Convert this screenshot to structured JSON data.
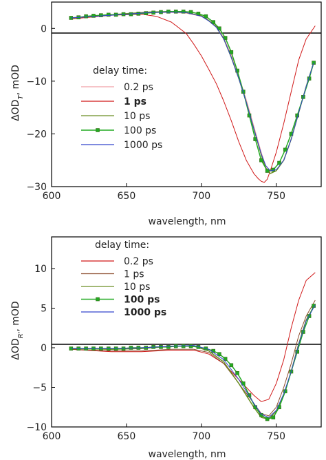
{
  "chart_data": [
    {
      "type": "line",
      "panel": "top",
      "ylabel_parts": {
        "prefix": "ΔOD",
        "sub": "T",
        "suffix": ", mOD"
      },
      "xlabel": "wavelength, nm",
      "xlim": [
        600,
        780
      ],
      "ylim": [
        -30,
        5
      ],
      "xticks": [
        600,
        650,
        700,
        750
      ],
      "yticks": [
        0,
        -10,
        -20,
        -30
      ],
      "zero_line": true,
      "legend": {
        "title": "delay time:",
        "placement": "left-center",
        "entries": [
          {
            "label": "0.2 ps",
            "color": "#f0a0a8",
            "bold": false
          },
          {
            "label": "1 ps",
            "color": "#d01818",
            "bold": true
          },
          {
            "label": "10 ps",
            "color": "#6b8e23",
            "bold": false
          },
          {
            "label": "100 ps",
            "color": "#22aa22",
            "bold": false,
            "marker": true
          },
          {
            "label": "1000 ps",
            "color": "#3344cc",
            "bold": false
          }
        ]
      },
      "series": [
        {
          "name": "0.2 ps",
          "color": "#f0a0a8",
          "width": 1,
          "x": [
            613,
            640,
            665,
            680,
            690,
            700,
            705,
            710,
            715,
            720,
            725,
            730,
            735,
            740,
            743,
            746,
            750,
            755,
            760,
            765,
            770,
            775
          ],
          "y": [
            2.0,
            2.6,
            3.0,
            3.0,
            2.9,
            2.3,
            1.5,
            0.4,
            -1.8,
            -5.0,
            -9.0,
            -13.5,
            -18.5,
            -23.5,
            -26.2,
            -27.5,
            -27.0,
            -25.0,
            -21.0,
            -16.0,
            -11.0,
            -6.5
          ]
        },
        {
          "name": "1 ps",
          "color": "#d01818",
          "width": 1,
          "x": [
            613,
            640,
            660,
            670,
            680,
            690,
            695,
            700,
            705,
            710,
            715,
            720,
            725,
            730,
            735,
            738,
            740,
            742,
            744,
            746,
            750,
            755,
            760,
            765,
            770,
            776
          ],
          "y": [
            1.8,
            2.5,
            2.7,
            2.3,
            1.2,
            -1.0,
            -3.0,
            -5.2,
            -7.8,
            -10.5,
            -13.8,
            -17.5,
            -21.5,
            -25.0,
            -27.5,
            -28.5,
            -29.0,
            -29.2,
            -28.6,
            -27.0,
            -23.5,
            -18.0,
            -12.0,
            -6.0,
            -2.0,
            0.5
          ]
        },
        {
          "name": "10 ps",
          "color": "#6b8e23",
          "width": 1.5,
          "x": [
            613,
            640,
            665,
            680,
            690,
            700,
            705,
            710,
            715,
            720,
            725,
            730,
            735,
            740,
            743,
            746,
            750,
            755,
            760,
            765,
            770,
            775
          ],
          "y": [
            2.0,
            2.6,
            3.1,
            3.2,
            3.0,
            2.4,
            1.5,
            0.3,
            -2.0,
            -5.5,
            -9.5,
            -14.0,
            -19.0,
            -24.0,
            -26.5,
            -27.5,
            -27.0,
            -25.0,
            -21.0,
            -16.0,
            -11.0,
            -6.5
          ]
        },
        {
          "name": "100 ps",
          "color": "#22aa22",
          "width": 1.5,
          "marker": true,
          "x": [
            613,
            618,
            623,
            628,
            633,
            638,
            643,
            648,
            653,
            658,
            663,
            668,
            673,
            678,
            683,
            688,
            693,
            698,
            703,
            708,
            712,
            716,
            720,
            724,
            728,
            732,
            736,
            740,
            744,
            748,
            752,
            756,
            760,
            764,
            768,
            772,
            775
          ],
          "y": [
            2.0,
            2.1,
            2.3,
            2.4,
            2.5,
            2.6,
            2.6,
            2.7,
            2.7,
            2.8,
            2.9,
            3.0,
            3.1,
            3.2,
            3.2,
            3.2,
            3.1,
            2.8,
            2.3,
            1.2,
            0.0,
            -1.8,
            -4.5,
            -8.0,
            -12.0,
            -16.5,
            -21.0,
            -25.0,
            -27.0,
            -26.8,
            -25.5,
            -23.0,
            -20.0,
            -16.5,
            -13.0,
            -9.5,
            -6.5
          ]
        },
        {
          "name": "1000 ps",
          "color": "#3344cc",
          "width": 1,
          "x": [
            613,
            640,
            665,
            680,
            690,
            700,
            705,
            710,
            715,
            720,
            725,
            730,
            735,
            740,
            743,
            746,
            750,
            755,
            760,
            765,
            770,
            775
          ],
          "y": [
            2.0,
            2.5,
            3.0,
            3.1,
            3.0,
            2.3,
            1.4,
            0.2,
            -2.0,
            -5.5,
            -9.5,
            -14.0,
            -19.0,
            -23.8,
            -26.0,
            -27.0,
            -26.8,
            -25.0,
            -21.0,
            -16.0,
            -11.0,
            -6.5
          ]
        }
      ]
    },
    {
      "type": "line",
      "panel": "bottom",
      "ylabel_parts": {
        "prefix": "ΔOD",
        "sub": "R'",
        "suffix": ", mOD"
      },
      "xlabel": "wavelength, nm",
      "xlim": [
        600,
        780
      ],
      "ylim": [
        -10,
        14
      ],
      "xticks": [
        600,
        650,
        700,
        750
      ],
      "yticks": [
        10,
        5,
        0,
        -5,
        -10
      ],
      "zero_line": true,
      "legend": {
        "title": "delay time:",
        "placement": "top-left",
        "entries": [
          {
            "label": "0.2 ps",
            "color": "#d01818",
            "bold": false
          },
          {
            "label": "1 ps",
            "color": "#8b4a2b",
            "bold": false
          },
          {
            "label": "10 ps",
            "color": "#6b8e23",
            "bold": false
          },
          {
            "label": "100 ps",
            "color": "#22aa22",
            "bold": true,
            "marker": true
          },
          {
            "label": "1000 ps",
            "color": "#3344cc",
            "bold": true
          }
        ]
      },
      "series": [
        {
          "name": "0.2 ps",
          "color": "#d01818",
          "width": 1,
          "x": [
            613,
            640,
            660,
            680,
            695,
            705,
            715,
            725,
            735,
            740,
            745,
            750,
            755,
            760,
            765,
            770,
            776
          ],
          "y": [
            -0.2,
            -0.5,
            -0.5,
            -0.3,
            -0.3,
            -0.8,
            -2.0,
            -4.0,
            -6.0,
            -6.8,
            -6.5,
            -4.5,
            -1.5,
            2.5,
            6.0,
            8.5,
            9.5
          ]
        },
        {
          "name": "1 ps",
          "color": "#8b4a2b",
          "width": 1,
          "x": [
            613,
            640,
            660,
            680,
            695,
            705,
            715,
            725,
            735,
            740,
            745,
            750,
            755,
            760,
            765,
            770,
            776
          ],
          "y": [
            -0.2,
            -0.4,
            -0.4,
            -0.2,
            -0.2,
            -0.6,
            -2.0,
            -4.5,
            -7.0,
            -8.3,
            -8.6,
            -7.5,
            -5.0,
            -2.0,
            1.5,
            4.0,
            6.0
          ]
        },
        {
          "name": "10 ps",
          "color": "#6b8e23",
          "width": 1.5,
          "x": [
            613,
            640,
            660,
            680,
            695,
            705,
            715,
            725,
            735,
            740,
            745,
            750,
            755,
            760,
            765,
            770,
            776
          ],
          "y": [
            -0.1,
            -0.2,
            -0.1,
            0.2,
            0.2,
            -0.4,
            -1.8,
            -4.5,
            -7.5,
            -8.8,
            -9.0,
            -8.0,
            -6.0,
            -3.0,
            0.5,
            3.5,
            5.5
          ]
        },
        {
          "name": "100 ps",
          "color": "#22aa22",
          "width": 1.5,
          "marker": true,
          "x": [
            613,
            618,
            623,
            628,
            633,
            638,
            643,
            648,
            653,
            658,
            663,
            668,
            673,
            678,
            683,
            688,
            693,
            698,
            703,
            708,
            712,
            716,
            720,
            724,
            728,
            732,
            736,
            740,
            744,
            748,
            752,
            756,
            760,
            764,
            768,
            772,
            775
          ],
          "y": [
            -0.1,
            -0.1,
            -0.1,
            -0.1,
            -0.1,
            -0.1,
            -0.1,
            -0.1,
            0.0,
            0.0,
            0.0,
            0.1,
            0.1,
            0.1,
            0.2,
            0.2,
            0.2,
            0.1,
            -0.1,
            -0.4,
            -0.8,
            -1.4,
            -2.2,
            -3.2,
            -4.5,
            -6.0,
            -7.5,
            -8.5,
            -9.0,
            -8.8,
            -7.5,
            -5.5,
            -3.0,
            -0.5,
            2.0,
            4.0,
            5.3
          ]
        },
        {
          "name": "1000 ps",
          "color": "#3344cc",
          "width": 1,
          "x": [
            613,
            640,
            660,
            680,
            695,
            705,
            715,
            725,
            735,
            740,
            745,
            750,
            755,
            760,
            765,
            770,
            776
          ],
          "y": [
            -0.1,
            -0.1,
            0.0,
            0.2,
            0.3,
            -0.2,
            -1.5,
            -4.0,
            -7.0,
            -8.4,
            -8.8,
            -7.9,
            -5.8,
            -3.0,
            0.4,
            3.4,
            5.4
          ]
        }
      ]
    }
  ]
}
